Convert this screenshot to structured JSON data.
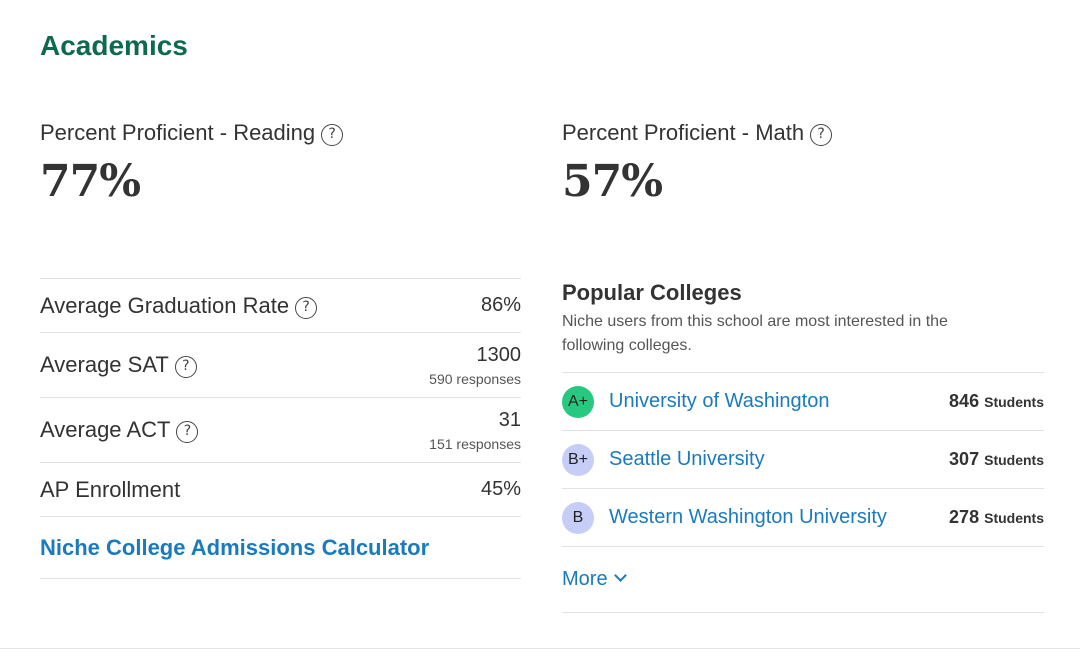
{
  "section_title": "Academics",
  "metrics": {
    "reading": {
      "label": "Percent Proficient - Reading",
      "value": "77%"
    },
    "math": {
      "label": "Percent Proficient - Math",
      "value": "57%"
    }
  },
  "help_glyph": "?",
  "stats": [
    {
      "name": "Average Graduation Rate",
      "value": "86%",
      "sub": ""
    },
    {
      "name": "Average SAT",
      "value": "1300",
      "sub": "590 responses"
    },
    {
      "name": "Average ACT",
      "value": "31",
      "sub": "151 responses"
    },
    {
      "name": "AP Enrollment",
      "value": "45%",
      "sub": ""
    }
  ],
  "calculator_link": "Niche College Admissions Calculator",
  "popular_colleges": {
    "heading": "Popular Colleges",
    "description": "Niche users from this school are most interested in the following colleges.",
    "colleges": [
      {
        "grade": "A+",
        "name": "University of Washington",
        "count": "846",
        "unit": "Students",
        "grade_color": "#27c980"
      },
      {
        "grade": "B+",
        "name": "Seattle University",
        "count": "307",
        "unit": "Students",
        "grade_color": "#c6cdf7"
      },
      {
        "grade": "B",
        "name": "Western Washington University",
        "count": "278",
        "unit": "Students",
        "grade_color": "#c6cdf7"
      }
    ],
    "more_label": "More"
  },
  "colors": {
    "title_green": "#0e6a4e",
    "link_blue": "#1a7abf"
  }
}
